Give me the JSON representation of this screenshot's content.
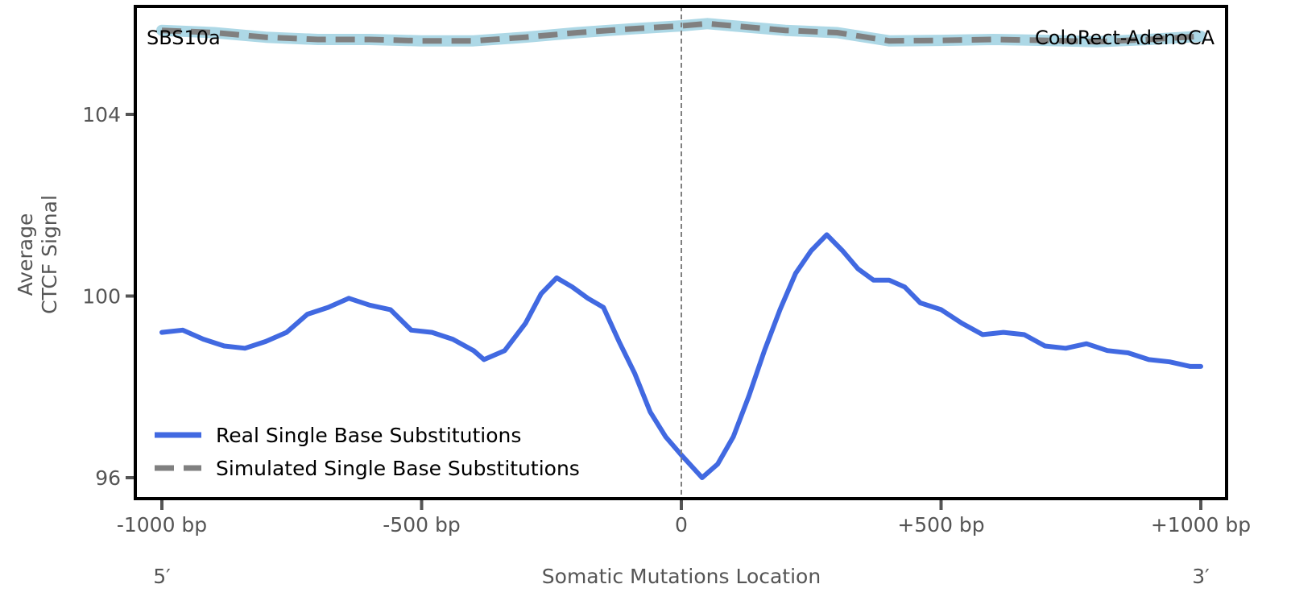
{
  "chart_data": {
    "type": "line",
    "title": "",
    "xlabel": "Somatic Mutations Location",
    "ylabel_lines": [
      "Average",
      "CTCF Signal"
    ],
    "xlim": [
      -1050,
      1050
    ],
    "ylim": [
      95.54,
      106.38
    ],
    "x_ticks": [
      -1000,
      -500,
      0,
      500,
      1000
    ],
    "x_tick_labels": [
      "-1000 bp",
      "-500 bp",
      "0",
      "+500 bp",
      "+1000 bp"
    ],
    "y_ticks": [
      96,
      100,
      104
    ],
    "y_tick_labels": [
      "96",
      "100",
      "104"
    ],
    "end_labels": {
      "left": "5′",
      "right": "3′"
    },
    "annotations": {
      "signature": "SBS10a",
      "cancer_type": "ColoRect-AdenoCA"
    },
    "center_line_x": 0,
    "grid": false,
    "legend_position": "lower-left",
    "series": [
      {
        "name": "Real Single Base Substitutions",
        "color": "#4169e1",
        "style": "solid",
        "x": [
          -1000,
          -960,
          -920,
          -880,
          -840,
          -800,
          -760,
          -720,
          -680,
          -640,
          -600,
          -560,
          -520,
          -480,
          -440,
          -400,
          -380,
          -340,
          -300,
          -270,
          -240,
          -210,
          -180,
          -150,
          -120,
          -90,
          -60,
          -30,
          0,
          20,
          40,
          70,
          100,
          130,
          160,
          190,
          220,
          250,
          280,
          310,
          340,
          370,
          400,
          430,
          460,
          500,
          540,
          580,
          620,
          660,
          700,
          740,
          780,
          820,
          860,
          900,
          940,
          980,
          1000
        ],
        "values": [
          99.2,
          99.25,
          99.05,
          98.9,
          98.85,
          99.0,
          99.2,
          99.6,
          99.75,
          99.95,
          99.8,
          99.7,
          99.25,
          99.2,
          99.05,
          98.8,
          98.6,
          98.8,
          99.4,
          100.05,
          100.4,
          100.2,
          99.95,
          99.75,
          99.0,
          98.3,
          97.45,
          96.9,
          96.5,
          96.25,
          96.0,
          96.3,
          96.9,
          97.8,
          98.8,
          99.7,
          100.5,
          101.0,
          101.35,
          101.0,
          100.6,
          100.35,
          100.35,
          100.2,
          99.85,
          99.7,
          99.4,
          99.15,
          99.2,
          99.15,
          98.9,
          98.85,
          98.95,
          98.8,
          98.75,
          98.6,
          98.55,
          98.45,
          98.45
        ]
      },
      {
        "name": "Simulated Single Base Substitutions",
        "color": "#808080",
        "halo_color": "#add8e6",
        "style": "dashed",
        "x": [
          -1000,
          -900,
          -800,
          -700,
          -600,
          -500,
          -400,
          -300,
          -200,
          -100,
          0,
          50,
          100,
          200,
          300,
          400,
          500,
          600,
          700,
          800,
          900,
          1000
        ],
        "values": [
          105.85,
          105.8,
          105.7,
          105.65,
          105.65,
          105.62,
          105.62,
          105.7,
          105.8,
          105.88,
          105.95,
          106.0,
          105.95,
          105.85,
          105.8,
          105.62,
          105.63,
          105.65,
          105.63,
          105.6,
          105.65,
          105.72
        ]
      }
    ]
  }
}
